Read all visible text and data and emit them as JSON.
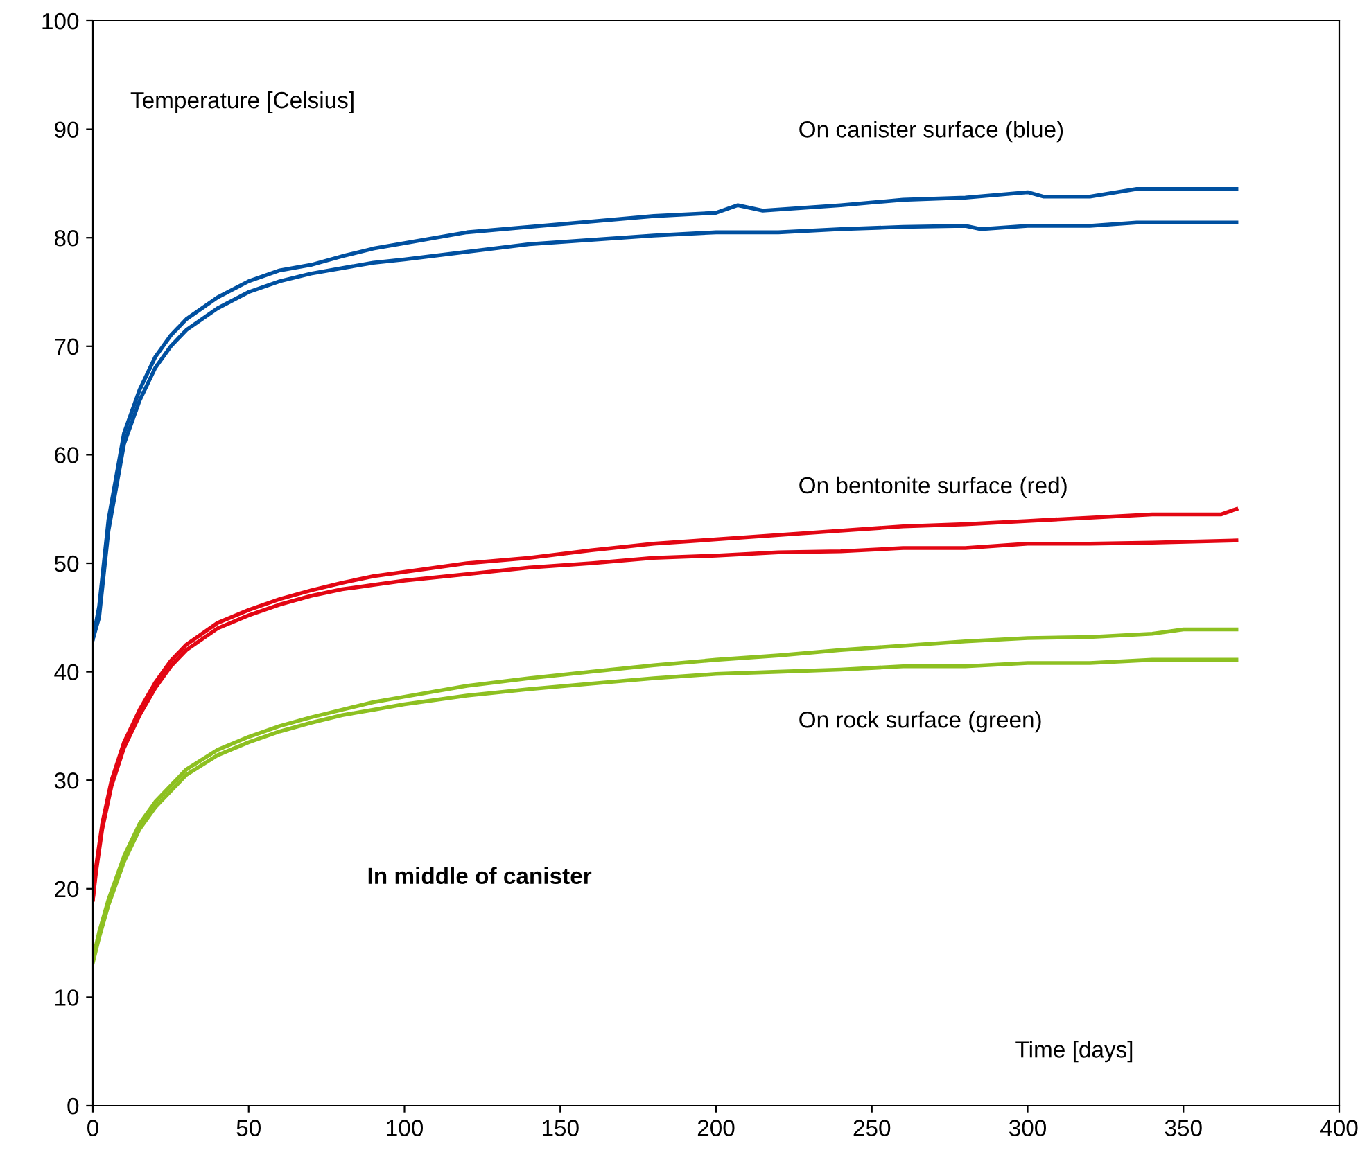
{
  "chart_data": {
    "type": "line",
    "ylabel": "Temperature [Celsius]",
    "xlabel": "Time [days]",
    "annotations": [
      "On canister surface (blue)",
      "On bentonite surface (red)",
      "On rock surface (green)",
      "In middle of canister"
    ],
    "xlim": [
      0,
      400
    ],
    "ylim": [
      0,
      100
    ],
    "xticks": [
      0,
      50,
      100,
      150,
      200,
      250,
      300,
      350,
      400
    ],
    "yticks": [
      0,
      10,
      20,
      30,
      40,
      50,
      60,
      70,
      80,
      90,
      100
    ],
    "grid": false,
    "legend": false,
    "line_style": "solid",
    "series": [
      {
        "color": "#0050a0",
        "x": [
          0,
          2,
          5,
          10,
          15,
          20,
          25,
          30,
          40,
          50,
          60,
          70,
          80,
          90,
          100,
          120,
          140,
          160,
          180,
          200,
          207,
          215,
          240,
          260,
          280,
          300,
          305,
          320,
          335,
          367
        ],
        "values": [
          43,
          46,
          54,
          62,
          66,
          69,
          71,
          72.5,
          74.5,
          76,
          77,
          77.5,
          78.3,
          79,
          79.5,
          80.5,
          81,
          81.5,
          82,
          82.3,
          83,
          82.5,
          83,
          83.5,
          83.7,
          84.2,
          83.8,
          83.8,
          84.5,
          84.5
        ]
      },
      {
        "color": "#0050a0",
        "x": [
          0,
          2,
          5,
          10,
          15,
          20,
          25,
          30,
          40,
          50,
          60,
          70,
          80,
          90,
          100,
          120,
          140,
          160,
          180,
          200,
          220,
          240,
          260,
          280,
          285,
          300,
          320,
          335,
          367
        ],
        "values": [
          43,
          45,
          53,
          61,
          65,
          68,
          70,
          71.5,
          73.5,
          75,
          76,
          76.7,
          77.2,
          77.7,
          78,
          78.7,
          79.4,
          79.8,
          80.2,
          80.5,
          80.5,
          80.8,
          81,
          81.1,
          80.8,
          81.1,
          81.1,
          81.4,
          81.4
        ]
      },
      {
        "color": "#e30613",
        "x": [
          0,
          1,
          3,
          6,
          10,
          15,
          20,
          25,
          30,
          40,
          50,
          60,
          70,
          80,
          90,
          100,
          120,
          140,
          160,
          180,
          200,
          220,
          240,
          260,
          280,
          300,
          320,
          340,
          362,
          367
        ],
        "values": [
          19,
          22,
          26,
          30,
          33.5,
          36.5,
          39,
          41,
          42.5,
          44.5,
          45.7,
          46.7,
          47.5,
          48.2,
          48.8,
          49.2,
          50,
          50.5,
          51.2,
          51.8,
          52.2,
          52.6,
          53,
          53.4,
          53.6,
          53.9,
          54.2,
          54.5,
          54.5,
          55
        ]
      },
      {
        "color": "#e30613",
        "x": [
          0,
          1,
          3,
          6,
          10,
          15,
          20,
          25,
          30,
          40,
          50,
          60,
          70,
          80,
          90,
          100,
          120,
          140,
          160,
          180,
          200,
          220,
          240,
          260,
          280,
          300,
          320,
          340,
          367
        ],
        "values": [
          19,
          21.5,
          25.5,
          29.5,
          33,
          36,
          38.5,
          40.5,
          42,
          44,
          45.2,
          46.2,
          47,
          47.6,
          48,
          48.4,
          49,
          49.6,
          50,
          50.5,
          50.7,
          51,
          51.1,
          51.4,
          51.4,
          51.8,
          51.8,
          51.9,
          52.1
        ]
      },
      {
        "color": "#8dc021",
        "x": [
          0,
          2,
          5,
          10,
          15,
          20,
          25,
          30,
          40,
          50,
          60,
          70,
          80,
          90,
          100,
          120,
          140,
          160,
          180,
          200,
          220,
          240,
          260,
          280,
          300,
          320,
          340,
          350,
          367
        ],
        "values": [
          13.5,
          16,
          19,
          23,
          26,
          28,
          29.5,
          31,
          32.8,
          34,
          35,
          35.8,
          36.5,
          37.2,
          37.7,
          38.7,
          39.4,
          40,
          40.6,
          41.1,
          41.5,
          42,
          42.4,
          42.8,
          43.1,
          43.2,
          43.5,
          43.9,
          43.9
        ]
      },
      {
        "color": "#8dc021",
        "x": [
          0,
          2,
          5,
          10,
          15,
          20,
          25,
          30,
          40,
          50,
          60,
          70,
          80,
          90,
          100,
          120,
          140,
          160,
          180,
          200,
          220,
          240,
          260,
          280,
          300,
          320,
          340,
          367
        ],
        "values": [
          13.2,
          15.5,
          18.5,
          22.5,
          25.5,
          27.5,
          29,
          30.5,
          32.3,
          33.5,
          34.5,
          35.3,
          36,
          36.5,
          37,
          37.8,
          38.4,
          38.9,
          39.4,
          39.8,
          40,
          40.2,
          40.5,
          40.5,
          40.8,
          40.8,
          41.1,
          41.1
        ]
      }
    ]
  }
}
